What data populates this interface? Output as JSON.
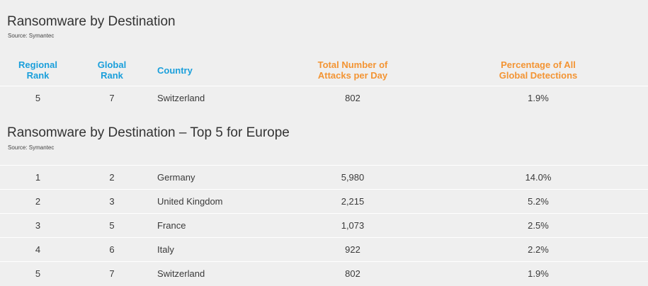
{
  "section1": {
    "title": "Ransomware by Destination",
    "source": "Source: Symantec",
    "headers": {
      "regional_rank": [
        "Regional",
        "Rank"
      ],
      "global_rank": [
        "Global",
        "Rank"
      ],
      "country": "Country",
      "total_attacks": [
        "Total Number of",
        "Attacks per Day"
      ],
      "percentage": [
        "Percentage of All",
        "Global Detections"
      ]
    },
    "rows": [
      {
        "regional_rank": "5",
        "global_rank": "7",
        "country": "Switzerland",
        "total_attacks": "802",
        "percentage": "1.9%"
      }
    ]
  },
  "section2": {
    "title": "Ransomware by Destination – Top 5 for Europe",
    "source": "Source: Symantec",
    "rows": [
      {
        "regional_rank": "1",
        "global_rank": "2",
        "country": "Germany",
        "total_attacks": "5,980",
        "percentage": "14.0%"
      },
      {
        "regional_rank": "2",
        "global_rank": "3",
        "country": "United Kingdom",
        "total_attacks": "2,215",
        "percentage": "5.2%"
      },
      {
        "regional_rank": "3",
        "global_rank": "5",
        "country": "France",
        "total_attacks": "1,073",
        "percentage": "2.5%"
      },
      {
        "regional_rank": "4",
        "global_rank": "6",
        "country": "Italy",
        "total_attacks": "922",
        "percentage": "2.2%"
      },
      {
        "regional_rank": "5",
        "global_rank": "7",
        "country": "Switzerland",
        "total_attacks": "802",
        "percentage": "1.9%"
      }
    ]
  },
  "colors": {
    "header_blue": "#1a9fdb",
    "header_orange": "#f39433",
    "background": "#efefef",
    "row_divider": "#ffffff"
  }
}
